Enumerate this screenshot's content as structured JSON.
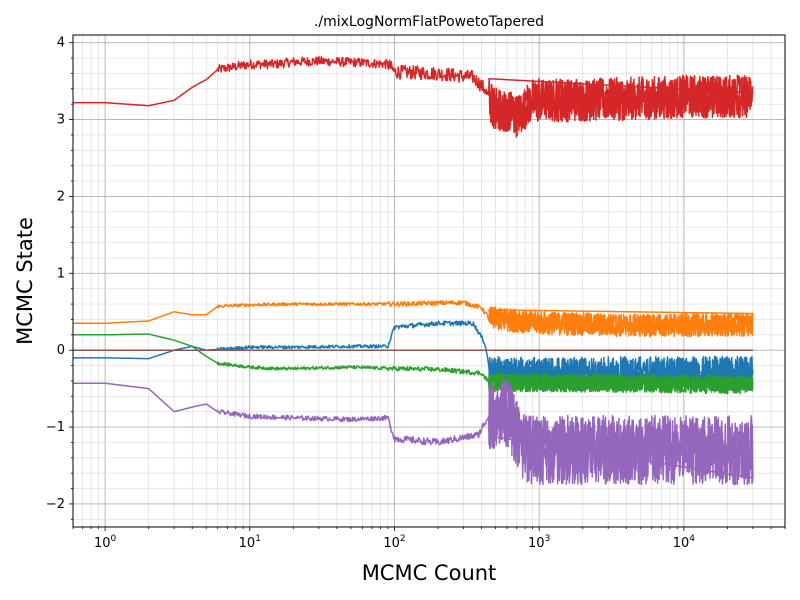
{
  "chart_data": {
    "type": "line",
    "title": "./mixLogNormFlatPowetoTapered",
    "xlabel": "MCMC Count",
    "ylabel": "MCMC State",
    "xscale": "log",
    "xlim": [
      0.6,
      50000
    ],
    "ylim": [
      -2.3,
      4.1
    ],
    "grid": true,
    "x_tick_labels": [
      {
        "value": 1,
        "base": "10",
        "exp": "0"
      },
      {
        "value": 10,
        "base": "10",
        "exp": "1"
      },
      {
        "value": 100,
        "base": "10",
        "exp": "2"
      },
      {
        "value": 1000,
        "base": "10",
        "exp": "3"
      },
      {
        "value": 10000,
        "base": "10",
        "exp": "4"
      }
    ],
    "y_ticks": [
      -2,
      -1,
      0,
      1,
      2,
      3,
      4
    ],
    "y_tick_labels": [
      "−2",
      "−1",
      "0",
      "1",
      "2",
      "3",
      "4"
    ],
    "series": [
      {
        "color": "#d62728",
        "noise": 0.06,
        "points": [
          [
            0.6,
            3.22
          ],
          [
            1,
            3.22
          ],
          [
            2,
            3.18
          ],
          [
            3,
            3.25
          ],
          [
            4,
            3.42
          ],
          [
            5,
            3.52
          ],
          [
            6,
            3.65
          ],
          [
            10,
            3.72
          ],
          [
            15,
            3.72
          ],
          [
            20,
            3.75
          ],
          [
            30,
            3.76
          ],
          [
            60,
            3.74
          ],
          [
            90,
            3.72
          ],
          [
            100,
            3.62
          ],
          [
            200,
            3.6
          ],
          [
            350,
            3.55
          ],
          [
            420,
            3.4
          ],
          [
            480,
            3.15
          ],
          [
            600,
            3.12
          ],
          [
            700,
            3.05
          ],
          [
            900,
            3.25
          ],
          [
            2000,
            3.25
          ],
          [
            10000,
            3.3
          ],
          [
            30000,
            3.3
          ]
        ],
        "late_spread": 0.28
      },
      {
        "color": "#ff7f0e",
        "noise": 0.02,
        "points": [
          [
            0.6,
            0.35
          ],
          [
            1,
            0.35
          ],
          [
            2,
            0.38
          ],
          [
            3,
            0.5
          ],
          [
            4,
            0.46
          ],
          [
            5,
            0.46
          ],
          [
            6,
            0.57
          ],
          [
            10,
            0.59
          ],
          [
            20,
            0.6
          ],
          [
            50,
            0.6
          ],
          [
            100,
            0.6
          ],
          [
            300,
            0.62
          ],
          [
            400,
            0.55
          ],
          [
            450,
            0.42
          ],
          [
            1000,
            0.35
          ],
          [
            5000,
            0.32
          ],
          [
            30000,
            0.33
          ]
        ],
        "late_spread": 0.15
      },
      {
        "color": "#1f77b4",
        "noise": 0.02,
        "points": [
          [
            0.6,
            -0.1
          ],
          [
            1,
            -0.1
          ],
          [
            2,
            -0.11
          ],
          [
            3,
            0.0
          ],
          [
            4,
            0.05
          ],
          [
            5,
            0.0
          ],
          [
            6,
            0.01
          ],
          [
            10,
            0.04
          ],
          [
            20,
            0.04
          ],
          [
            50,
            0.05
          ],
          [
            90,
            0.05
          ],
          [
            100,
            0.3
          ],
          [
            200,
            0.35
          ],
          [
            350,
            0.35
          ],
          [
            420,
            0.1
          ],
          [
            460,
            -0.3
          ],
          [
            1000,
            -0.32
          ],
          [
            5000,
            -0.3
          ],
          [
            30000,
            -0.3
          ]
        ],
        "late_spread": 0.22
      },
      {
        "color": "#2ca02c",
        "noise": 0.02,
        "points": [
          [
            0.6,
            0.2
          ],
          [
            1,
            0.2
          ],
          [
            2,
            0.21
          ],
          [
            3,
            0.13
          ],
          [
            4,
            0.05
          ],
          [
            5,
            -0.08
          ],
          [
            6,
            -0.17
          ],
          [
            10,
            -0.22
          ],
          [
            15,
            -0.24
          ],
          [
            20,
            -0.24
          ],
          [
            50,
            -0.22
          ],
          [
            100,
            -0.24
          ],
          [
            200,
            -0.25
          ],
          [
            400,
            -0.3
          ],
          [
            450,
            -0.42
          ],
          [
            1000,
            -0.42
          ],
          [
            30000,
            -0.45
          ]
        ],
        "late_spread": 0.12
      },
      {
        "color": "#8c564b",
        "noise": 0.0,
        "points": [
          [
            0.6,
            0.0
          ],
          [
            30000,
            0.0
          ]
        ],
        "late_spread": 0.0
      },
      {
        "color": "#9467bd",
        "noise": 0.03,
        "points": [
          [
            0.6,
            -0.43
          ],
          [
            1,
            -0.43
          ],
          [
            2,
            -0.5
          ],
          [
            3,
            -0.8
          ],
          [
            4,
            -0.74
          ],
          [
            5,
            -0.7
          ],
          [
            6,
            -0.8
          ],
          [
            10,
            -0.86
          ],
          [
            20,
            -0.88
          ],
          [
            50,
            -0.9
          ],
          [
            90,
            -0.88
          ],
          [
            100,
            -1.15
          ],
          [
            200,
            -1.2
          ],
          [
            380,
            -1.1
          ],
          [
            450,
            -0.85
          ],
          [
            600,
            -0.8
          ],
          [
            800,
            -1.3
          ],
          [
            1000,
            -1.3
          ],
          [
            5000,
            -1.3
          ],
          [
            30000,
            -1.3
          ]
        ],
        "late_spread": 0.45
      }
    ]
  }
}
